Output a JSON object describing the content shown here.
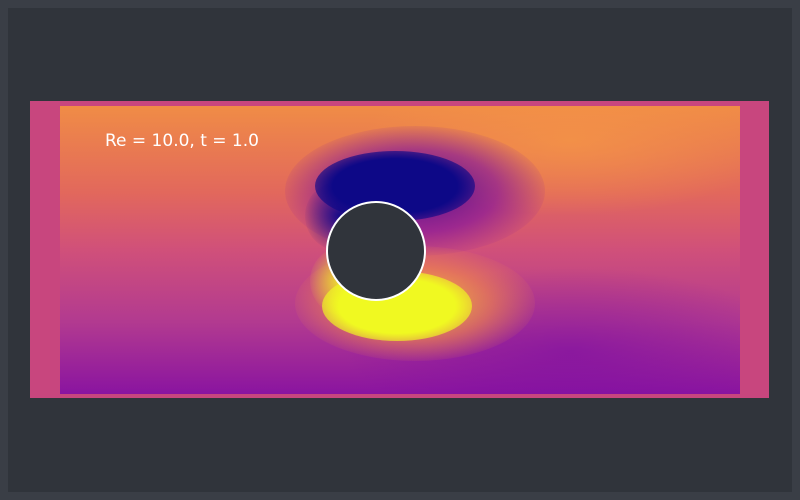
{
  "simulation": {
    "label": "Re = 10.0, t = 1.0",
    "colormap": "plasma",
    "colors": {
      "background": "#30343b",
      "panel_border": "#c8467e",
      "obstacle_fill": "#30343b",
      "obstacle_outline": "#ffffff",
      "vortex_negative": "#0d0887",
      "vortex_positive": "#f0f921"
    }
  }
}
